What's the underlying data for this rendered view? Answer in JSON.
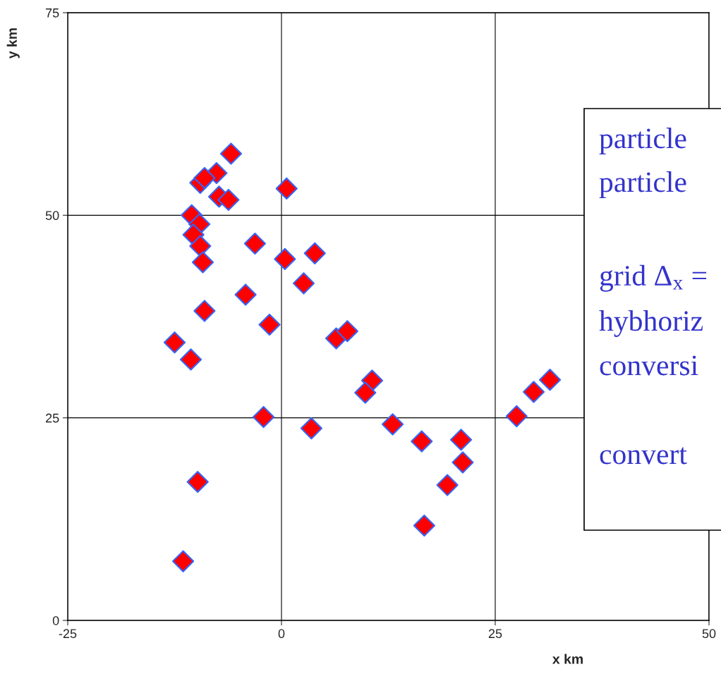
{
  "chart_data": {
    "type": "scatter",
    "xlabel": "x km",
    "ylabel": "y km",
    "x": [
      -5.9,
      -7.6,
      -9.5,
      -9.0,
      -7.3,
      -6.2,
      0.6,
      -10.5,
      -9.6,
      -10.3,
      -9.5,
      -9.2,
      -3.1,
      0.4,
      3.9,
      2.6,
      -4.2,
      -9.0,
      -1.4,
      -12.5,
      -10.6,
      -2.1,
      3.5,
      6.4,
      7.7,
      10.6,
      9.8,
      13.0,
      16.4,
      21.0,
      21.2,
      19.4,
      16.7,
      27.5,
      29.5,
      31.4,
      -9.8,
      -11.5
    ],
    "series": [
      {
        "color": "#ff0000",
        "values": [
          57.6,
          55.2,
          54.0,
          54.6,
          52.3,
          51.9,
          53.3,
          50.0,
          48.9,
          47.6,
          46.2,
          44.2,
          46.5,
          44.6,
          45.3,
          41.6,
          40.2,
          38.2,
          36.5,
          34.3,
          32.2,
          25.1,
          23.7,
          34.8,
          35.7,
          29.6,
          28.1,
          24.2,
          22.1,
          22.3,
          19.5,
          16.7,
          11.7,
          25.2,
          28.2,
          29.7,
          17.1,
          7.3
        ]
      }
    ],
    "marker": "diamond",
    "xlim": [
      -25,
      50
    ],
    "ylim": [
      0,
      75
    ],
    "xticks": [
      -25,
      0,
      25,
      50
    ],
    "yticks": [
      0,
      25,
      50,
      75
    ],
    "grid": true,
    "annotations": [
      "particle",
      "particle",
      "grid Δ$_{x}$ =",
      "hybhoriz",
      "conversi",
      "convert"
    ]
  }
}
